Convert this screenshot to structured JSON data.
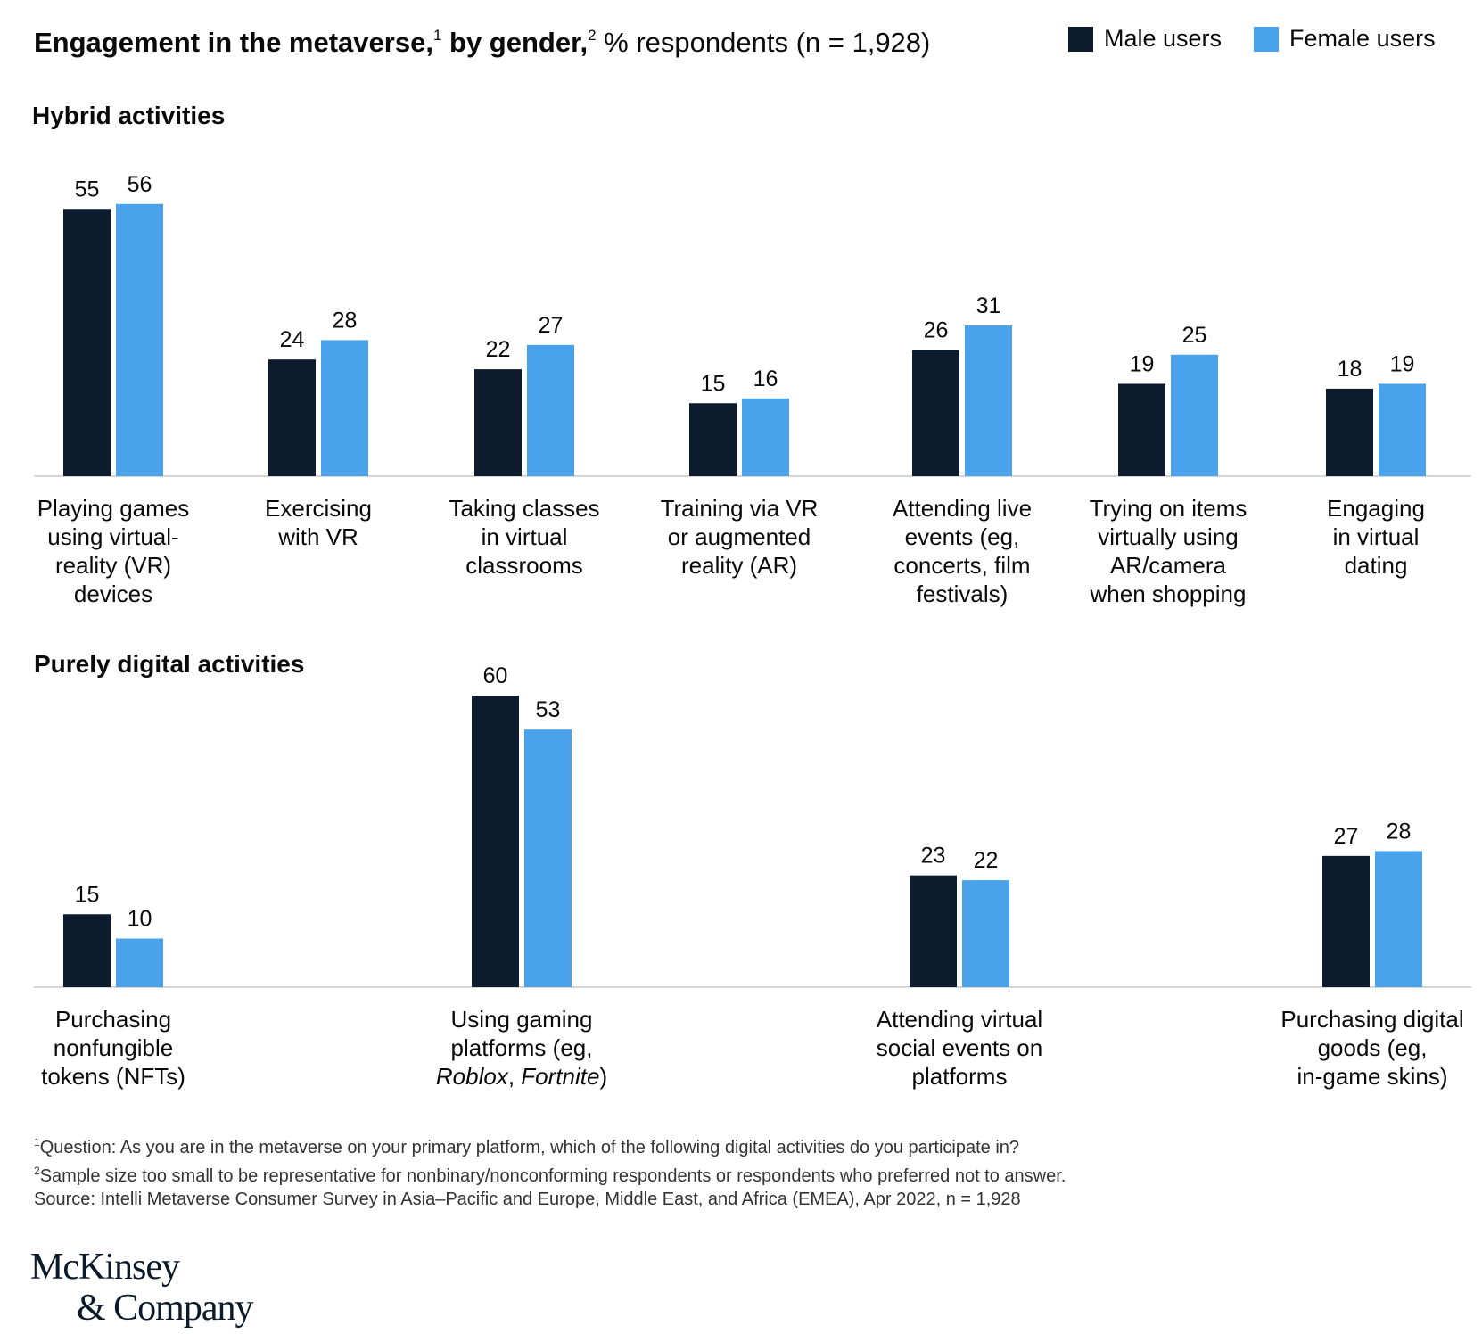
{
  "title": {
    "main": "Engagement in the metaverse,",
    "sup1": "1",
    "mid": " by gender,",
    "sup2": "2",
    "sub": " % respondents (n = 1,928)"
  },
  "colors": {
    "male": "#0d1b2e",
    "female": "#4aa3ea",
    "axis": "#c8c8c8"
  },
  "chart_data": [
    {
      "type": "bar",
      "title": "Hybrid activities",
      "categories": [
        [
          "Playing games",
          "using virtual-",
          "reality (VR)",
          "devices"
        ],
        [
          "Exercising",
          "with VR"
        ],
        [
          "Taking classes",
          "in virtual",
          "classrooms"
        ],
        [
          "Training via VR",
          "or augmented",
          "reality (AR)"
        ],
        [
          "Attending live",
          "events (eg,",
          "concerts, film",
          "festivals)"
        ],
        [
          "Trying on items",
          "virtually using",
          "AR/camera",
          "when shopping"
        ],
        [
          "Engaging",
          "in virtual",
          "dating"
        ]
      ],
      "series": [
        {
          "name": "Male users",
          "values": [
            55,
            24,
            22,
            15,
            26,
            19,
            18
          ]
        },
        {
          "name": "Female users",
          "values": [
            56,
            28,
            27,
            16,
            31,
            25,
            19
          ]
        }
      ],
      "legend": "top-right"
    },
    {
      "type": "bar",
      "title": "Purely digital activities",
      "categories": [
        [
          [
            "Purchasing"
          ],
          [
            "nonfungible"
          ],
          [
            "tokens (NFTs)"
          ]
        ],
        [
          [
            "Using gaming"
          ],
          [
            "platforms (eg,"
          ],
          [
            {
              "t": "Roblox",
              "i": true
            },
            {
              "t": ", "
            },
            {
              "t": "Fortnite",
              "i": true
            },
            {
              "t": ")"
            }
          ]
        ],
        [
          [
            "Attending virtual"
          ],
          [
            "social events on"
          ],
          [
            "platforms"
          ]
        ],
        [
          [
            "Purchasing digital"
          ],
          [
            "goods (eg,"
          ],
          [
            "in-game skins)"
          ]
        ]
      ],
      "series": [
        {
          "name": "Male users",
          "values": [
            15,
            60,
            23,
            27
          ]
        },
        {
          "name": "Female users",
          "values": [
            10,
            53,
            22,
            28
          ]
        }
      ]
    }
  ],
  "notes": {
    "n1_sup": "1",
    "n1": "Question: As you are in the metaverse on your primary platform, which of the following digital activities do you participate in?",
    "n2_sup": "2",
    "n2": "Sample size too small to be representative for nonbinary/nonconforming respondents or respondents who preferred not to answer.",
    "source": "Source: Intelli Metaverse Consumer Survey in Asia–Pacific and Europe, Middle East, and Africa (EMEA), Apr 2022, n = 1,928"
  },
  "logo": {
    "line1": "McKinsey",
    "line2": "& Company"
  }
}
